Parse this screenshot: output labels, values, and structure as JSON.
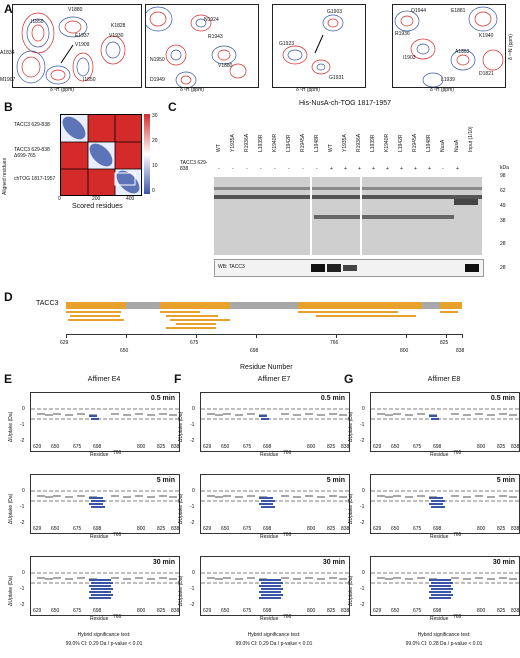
{
  "panels": {
    "A": {
      "label": "A",
      "xlabel": "δ ¹H (ppm)",
      "ylabel": "δ ¹⁵N (ppm)",
      "spectra": [
        {
          "peaks": [
            "I1850",
            "V1880",
            "K1828",
            "E1937",
            "V1909",
            "V1930",
            "A1834",
            "I1850",
            "M1907"
          ]
        },
        {
          "peaks": [
            "N1924",
            "R1943",
            "N1950",
            "V1880",
            "D1949"
          ]
        },
        {
          "peaks": [
            "G1903",
            "G1923",
            "G1931"
          ]
        },
        {
          "peaks": [
            "Q1944",
            "E1881",
            "R1936",
            "K1940",
            "I1903",
            "A1863",
            "D1821",
            "L1939"
          ]
        }
      ]
    },
    "B": {
      "label": "B",
      "rows": [
        "TACC3 629-838",
        "TACC3 629-838 Δ699-765",
        "chTOG 1817-1957"
      ],
      "ylabel": "Aligned residues",
      "xlabel": "Scored residues",
      "xticks": [
        "0",
        "200",
        "400"
      ],
      "colorbar_ticks": [
        "30",
        "20",
        "10",
        "0"
      ]
    },
    "C": {
      "label": "C",
      "title": "His-NusA-ch-TOG 1817-1957",
      "lanes": [
        "WT",
        "Y1935A",
        "R1936A",
        "L1939R",
        "K1940R",
        "L1942R",
        "R1945A",
        "L1948R",
        "WT",
        "Y1935A",
        "R1936A",
        "L1939R",
        "K1940R",
        "L1942R",
        "R1945A",
        "L1948R",
        "NusA",
        "NusA",
        "Input (1/10)"
      ],
      "tacc3_label": "TACC3 629-838",
      "signs": [
        "-",
        "-",
        "-",
        "-",
        "-",
        "-",
        "-",
        "-",
        "+",
        "+",
        "+",
        "+",
        "+",
        "+",
        "+",
        "+",
        "-",
        "+"
      ],
      "kda_unit": "kDa",
      "markers": [
        "98",
        "62",
        "49",
        "38",
        "28",
        "28"
      ],
      "wb_label": "WB: TACC3"
    },
    "D": {
      "label": "D",
      "protein": "TACC3",
      "xlabel": "Residue Number",
      "ticks": [
        "629",
        "650",
        "675",
        "698",
        "766",
        "800",
        "825",
        "838"
      ]
    },
    "E": {
      "label": "E",
      "title": "Affimer E4",
      "test": "Hybrid significance test:",
      "ci": "99.0% CI: 0.29 Da / p-value < 0.01"
    },
    "F": {
      "label": "F",
      "title": "Affimer E7",
      "test": "Hybrid significance test:",
      "ci": "99.0% CI: 0.29 Da / p-value < 0.01"
    },
    "G": {
      "label": "G",
      "title": "Affimer E8",
      "test": "Hybrid significance test:",
      "ci": "99.0% CI: 0.28 Da / p-value < 0.01"
    }
  },
  "uptake": {
    "ylabel": "ΔUptake (Da)",
    "xlabel": "Residue",
    "yticks": [
      "0",
      "-1",
      "-2"
    ],
    "xticks": [
      "629",
      "650",
      "675",
      "698",
      "766",
      "800",
      "825",
      "838"
    ],
    "times": [
      "0.5 min",
      "5 min",
      "30 min"
    ]
  },
  "colors": {
    "blue": "#3a55a8",
    "red": "#d42a2a",
    "orange": "#e8a22b",
    "grey": "#a8a8a8"
  }
}
